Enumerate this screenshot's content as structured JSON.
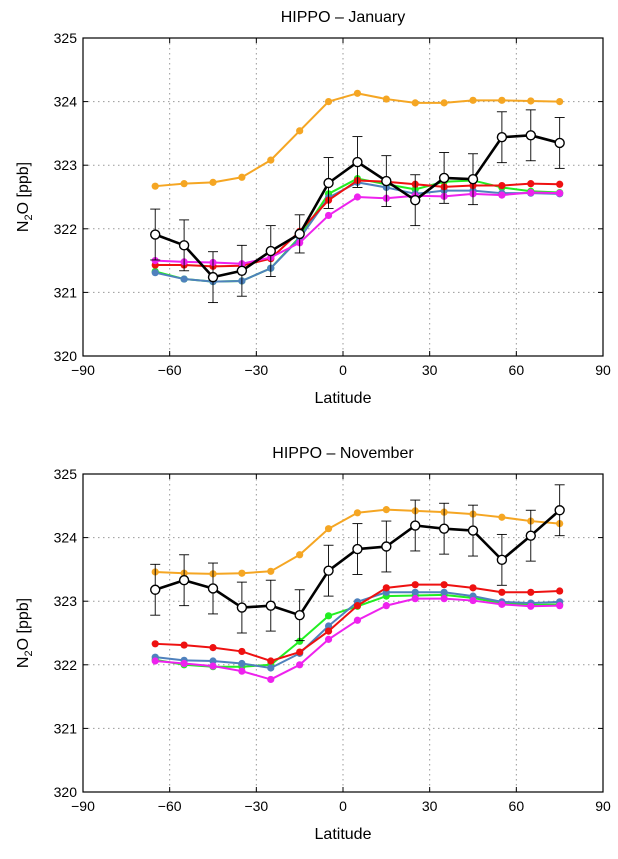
{
  "chart_data": [
    {
      "type": "line",
      "title": "HIPPO – January",
      "xlabel": "Latitude",
      "ylabel_main": "N",
      "ylabel_sub": "2",
      "ylabel_rest": "O  [ppb]",
      "xlim": [
        -90,
        90
      ],
      "ylim": [
        320,
        325
      ],
      "xticks": [
        -90,
        -60,
        -30,
        0,
        30,
        60,
        90
      ],
      "xtick_labels": [
        "−90",
        "−60",
        "−30",
        "0",
        "30",
        "60",
        "90"
      ],
      "yticks": [
        320,
        321,
        322,
        323,
        324,
        325
      ],
      "ytick_labels": [
        "320",
        "321",
        "322",
        "323",
        "324",
        "325"
      ],
      "grid": true,
      "x": [
        -65,
        -55,
        -45,
        -35,
        -25,
        -15,
        -5,
        5,
        15,
        25,
        35,
        45,
        55,
        65,
        75
      ],
      "series": [
        {
          "color": "#f5a623",
          "values": [
            322.67,
            322.71,
            322.73,
            322.81,
            323.08,
            323.54,
            324.0,
            324.13,
            324.04,
            323.98,
            323.98,
            324.02,
            324.02,
            324.01,
            324.0
          ]
        },
        {
          "color": "#22ee22",
          "values": [
            321.33,
            321.21,
            321.17,
            321.18,
            321.38,
            321.87,
            322.55,
            322.79,
            322.7,
            322.62,
            322.74,
            322.76,
            322.65,
            322.59,
            322.57
          ]
        },
        {
          "color": "#4f81bd",
          "values": [
            321.31,
            321.21,
            321.17,
            321.18,
            321.38,
            321.85,
            322.49,
            322.73,
            322.65,
            322.55,
            322.6,
            322.6,
            322.56,
            322.56,
            322.55
          ]
        },
        {
          "color": "#ee1111",
          "values": [
            321.43,
            321.43,
            321.41,
            321.42,
            321.53,
            321.96,
            322.45,
            322.76,
            322.74,
            322.7,
            322.66,
            322.68,
            322.68,
            322.71,
            322.7
          ]
        },
        {
          "color": "#ee22ee",
          "values": [
            321.5,
            321.48,
            321.47,
            321.45,
            321.55,
            321.78,
            322.21,
            322.5,
            322.48,
            322.52,
            322.51,
            322.55,
            322.53,
            322.57,
            322.56
          ]
        },
        {
          "color": "#000000",
          "open_markers": true,
          "values": [
            321.91,
            321.74,
            321.24,
            321.34,
            321.65,
            321.92,
            322.72,
            323.05,
            322.75,
            322.45,
            322.8,
            322.78,
            323.44,
            323.47,
            323.35
          ],
          "errors": [
            0.4,
            0.4,
            0.4,
            0.4,
            0.4,
            0.3,
            0.4,
            0.4,
            0.4,
            0.4,
            0.4,
            0.4,
            0.4,
            0.4,
            0.4
          ]
        }
      ]
    },
    {
      "type": "line",
      "title": "HIPPO – November",
      "xlabel": "Latitude",
      "ylabel_main": "N",
      "ylabel_sub": "2",
      "ylabel_rest": "O  [ppb]",
      "xlim": [
        -90,
        90
      ],
      "ylim": [
        320,
        325
      ],
      "xticks": [
        -90,
        -60,
        -30,
        0,
        30,
        60,
        90
      ],
      "xtick_labels": [
        "−90",
        "−60",
        "−30",
        "0",
        "30",
        "60",
        "90"
      ],
      "yticks": [
        320,
        321,
        322,
        323,
        324,
        325
      ],
      "ytick_labels": [
        "320",
        "321",
        "322",
        "323",
        "324",
        "325"
      ],
      "grid": true,
      "x": [
        -65,
        -55,
        -45,
        -35,
        -25,
        -15,
        -5,
        5,
        15,
        25,
        35,
        45,
        55,
        65,
        75
      ],
      "series": [
        {
          "color": "#f5a623",
          "values": [
            323.46,
            323.44,
            323.43,
            323.44,
            323.47,
            323.73,
            324.14,
            324.39,
            324.44,
            324.42,
            324.4,
            324.37,
            324.32,
            324.26,
            324.22
          ]
        },
        {
          "color": "#22ee22",
          "values": [
            322.08,
            322.0,
            321.97,
            321.97,
            322.0,
            322.37,
            322.77,
            322.92,
            323.08,
            323.09,
            323.1,
            323.05,
            322.97,
            322.94,
            322.95
          ]
        },
        {
          "color": "#4f81bd",
          "values": [
            322.12,
            322.07,
            322.06,
            322.02,
            321.95,
            322.18,
            322.61,
            322.99,
            323.14,
            323.14,
            323.14,
            323.08,
            322.99,
            322.97,
            322.99
          ]
        },
        {
          "color": "#ee1111",
          "values": [
            322.33,
            322.31,
            322.27,
            322.21,
            322.06,
            322.2,
            322.53,
            322.93,
            323.21,
            323.26,
            323.26,
            323.21,
            323.14,
            323.14,
            323.16
          ]
        },
        {
          "color": "#ee22ee",
          "values": [
            322.06,
            322.02,
            321.98,
            321.9,
            321.77,
            322.0,
            322.4,
            322.7,
            322.93,
            323.04,
            323.04,
            323.01,
            322.95,
            322.92,
            322.93
          ]
        },
        {
          "color": "#000000",
          "open_markers": true,
          "values": [
            323.18,
            323.33,
            323.2,
            322.9,
            322.93,
            322.78,
            323.48,
            323.82,
            323.86,
            324.19,
            324.14,
            324.11,
            323.65,
            324.03,
            324.43
          ],
          "errors": [
            0.4,
            0.4,
            0.4,
            0.4,
            0.4,
            0.4,
            0.4,
            0.4,
            0.4,
            0.4,
            0.4,
            0.4,
            0.4,
            0.4,
            0.4
          ]
        }
      ]
    }
  ]
}
